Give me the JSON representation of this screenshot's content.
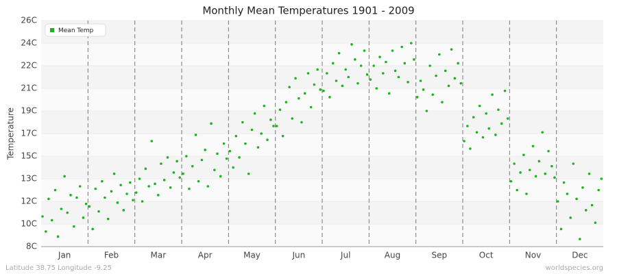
{
  "chart_data": {
    "type": "scatter",
    "title": "Monthly Mean Temperatures 1901 - 2009",
    "y_label": "Temperature",
    "footer_left": "Latitude 38.75 Longitude -9.25",
    "footer_right": "worldspecies.org",
    "legend": "top-left",
    "categories": [
      "Jan",
      "Feb",
      "Mar",
      "Apr",
      "May",
      "Jun",
      "Jul",
      "Aug",
      "Sep",
      "Oct",
      "Nov",
      "Dec"
    ],
    "xlim": [
      0,
      12
    ],
    "ylim": [
      8,
      26
    ],
    "yticks": [
      {
        "value": 8,
        "label": "8C"
      },
      {
        "value": 9.8,
        "label": "10C"
      },
      {
        "value": 11.6,
        "label": "12C"
      },
      {
        "value": 13.4,
        "label": "13C"
      },
      {
        "value": 15.2,
        "label": "15C"
      },
      {
        "value": 17,
        "label": "17C"
      },
      {
        "value": 18.8,
        "label": "19C"
      },
      {
        "value": 20.6,
        "label": "21C"
      },
      {
        "value": 22.4,
        "label": "22C"
      },
      {
        "value": 24.2,
        "label": "24C"
      },
      {
        "value": 26,
        "label": "26C"
      }
    ],
    "x": [
      0.03,
      0.1,
      0.16,
      0.23,
      0.3,
      0.36,
      0.43,
      0.5,
      0.56,
      0.63,
      0.7,
      0.76,
      0.83,
      0.9,
      0.96,
      1.03,
      1.1,
      1.16,
      1.23,
      1.3,
      1.36,
      1.43,
      1.5,
      1.56,
      1.63,
      1.7,
      1.76,
      1.83,
      1.9,
      1.96,
      2.03,
      2.1,
      2.16,
      2.23,
      2.3,
      2.36,
      2.43,
      2.5,
      2.56,
      2.63,
      2.7,
      2.76,
      2.83,
      2.9,
      2.96,
      3.03,
      3.1,
      3.16,
      3.23,
      3.3,
      3.36,
      3.43,
      3.5,
      3.56,
      3.63,
      3.7,
      3.76,
      3.83,
      3.9,
      3.96,
      4.03,
      4.1,
      4.16,
      4.23,
      4.3,
      4.36,
      4.43,
      4.5,
      4.56,
      4.63,
      4.7,
      4.76,
      4.83,
      4.9,
      4.96,
      5.03,
      5.1,
      5.16,
      5.23,
      5.3,
      5.36,
      5.43,
      5.5,
      5.56,
      5.63,
      5.7,
      5.76,
      5.83,
      5.9,
      5.96,
      6.03,
      6.1,
      6.16,
      6.23,
      6.3,
      6.36,
      6.43,
      6.5,
      6.56,
      6.63,
      6.7,
      6.76,
      6.83,
      6.9,
      6.96,
      7.03,
      7.1,
      7.16,
      7.23,
      7.3,
      7.36,
      7.43,
      7.5,
      7.56,
      7.63,
      7.7,
      7.76,
      7.83,
      7.9,
      7.96,
      8.03,
      8.1,
      8.16,
      8.23,
      8.3,
      8.36,
      8.43,
      8.5,
      8.56,
      8.63,
      8.7,
      8.76,
      8.83,
      8.9,
      8.96,
      9.03,
      9.1,
      9.16,
      9.23,
      9.3,
      9.36,
      9.43,
      9.5,
      9.56,
      9.63,
      9.7,
      9.76,
      9.83,
      9.9,
      9.96,
      10.03,
      10.1,
      10.16,
      10.23,
      10.3,
      10.36,
      10.43,
      10.5,
      10.56,
      10.63,
      10.7,
      10.76,
      10.83,
      10.9,
      10.96,
      11.03,
      11.1,
      11.16,
      11.23,
      11.3,
      11.36,
      11.43,
      11.5,
      11.56,
      11.63,
      11.7,
      11.76,
      11.83,
      11.9,
      11.96
    ],
    "series": [
      {
        "name": "Mean Temp",
        "color": "#1db31d",
        "values": [
          10.4,
          9.2,
          11.8,
          10.1,
          12.5,
          8.8,
          11.0,
          13.6,
          10.7,
          12.1,
          9.6,
          11.9,
          12.8,
          10.3,
          11.4,
          11.2,
          9.4,
          12.6,
          10.8,
          13.2,
          11.9,
          10.2,
          12.4,
          13.8,
          11.5,
          12.9,
          10.9,
          12.2,
          13.1,
          11.7,
          12.3,
          13.4,
          11.6,
          14.2,
          12.8,
          16.4,
          13.0,
          12.1,
          14.6,
          13.3,
          15.1,
          12.7,
          13.9,
          14.8,
          13.5,
          13.8,
          15.2,
          12.6,
          14.4,
          16.9,
          13.2,
          14.9,
          15.7,
          12.8,
          17.8,
          14.1,
          15.4,
          13.6,
          16.2,
          15.0,
          15.6,
          14.3,
          16.8,
          15.1,
          17.9,
          16.2,
          13.8,
          17.3,
          18.6,
          15.9,
          17.0,
          19.2,
          16.5,
          18.1,
          17.6,
          17.6,
          18.9,
          16.8,
          19.5,
          20.7,
          18.2,
          21.4,
          19.8,
          17.9,
          20.2,
          21.8,
          19.1,
          20.9,
          22.1,
          20.5,
          20.4,
          21.8,
          19.9,
          22.6,
          21.2,
          23.4,
          20.8,
          22.1,
          21.5,
          24.1,
          22.9,
          21.0,
          22.4,
          23.6,
          21.7,
          21.3,
          22.4,
          20.6,
          23.1,
          21.8,
          22.7,
          20.2,
          23.6,
          22.0,
          21.5,
          23.9,
          22.6,
          21.1,
          24.2,
          22.9,
          19.9,
          21.2,
          20.5,
          18.8,
          22.4,
          20.1,
          21.6,
          23.3,
          19.5,
          22.0,
          20.8,
          23.7,
          21.4,
          22.6,
          21.0,
          16.4,
          17.6,
          15.8,
          18.3,
          17.1,
          19.2,
          16.7,
          18.6,
          17.4,
          20.1,
          16.9,
          18.9,
          17.8,
          20.4,
          18.2,
          13.2,
          14.6,
          12.5,
          13.9,
          15.3,
          12.2,
          14.1,
          16.0,
          13.6,
          14.8,
          17.1,
          13.8,
          15.6,
          14.4,
          13.5,
          11.6,
          9.4,
          13.1,
          12.2,
          10.3,
          14.6,
          11.8,
          8.6,
          12.7,
          10.9,
          13.8,
          11.3,
          9.9,
          12.5,
          13.4
        ]
      }
    ]
  }
}
